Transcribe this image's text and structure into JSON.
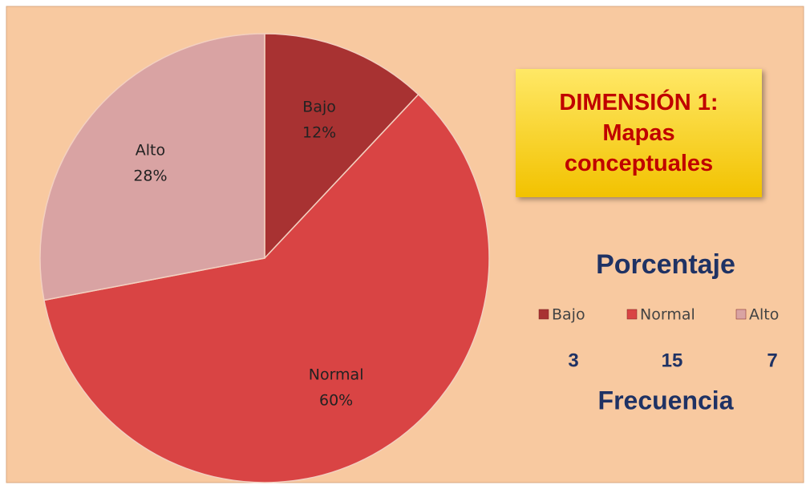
{
  "chart_data": {
    "type": "pie",
    "title": "DIMENSIÓN 1: Mapas conceptuales",
    "legend_title": "Porcentaje",
    "categories": [
      "Bajo",
      "Normal",
      "Alto"
    ],
    "values": [
      12,
      60,
      28
    ],
    "value_labels": [
      "12%",
      "60%",
      "28%"
    ],
    "colors": [
      "#a83232",
      "#d94444",
      "#d9a3a3"
    ],
    "frequency_label": "Frecuencia",
    "frequencies": [
      3,
      15,
      7
    ]
  }
}
